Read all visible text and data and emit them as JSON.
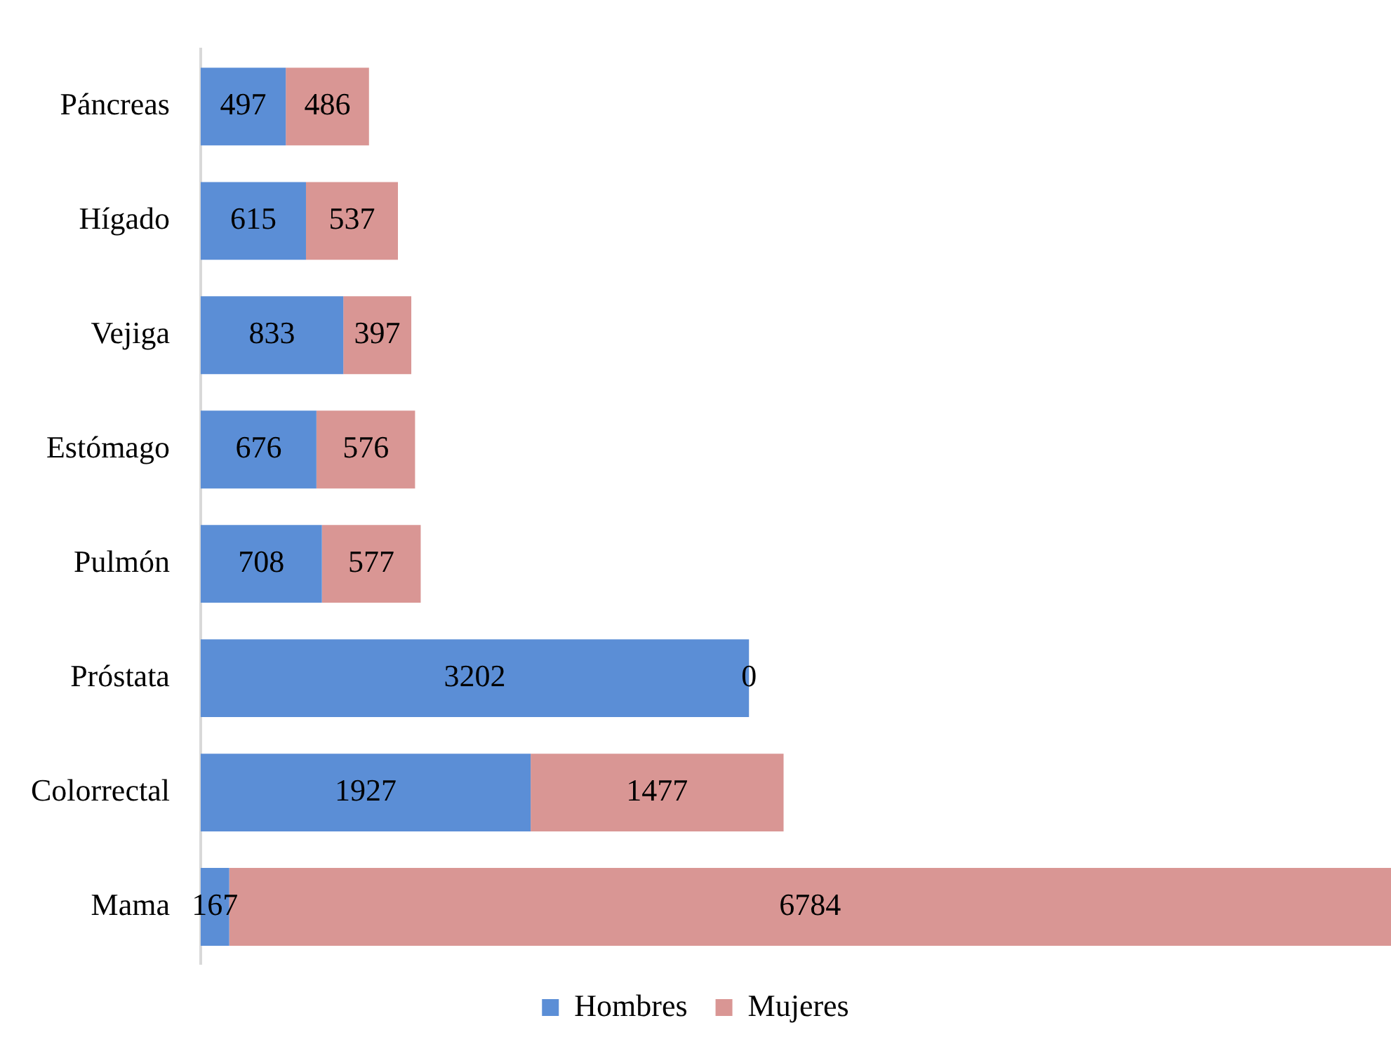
{
  "chart_data": {
    "type": "bar",
    "orientation": "horizontal",
    "stacked": true,
    "data_labels": true,
    "legend": "bottom",
    "categories": [
      "Páncreas",
      "Hígado",
      "Vejiga",
      "Estómago",
      "Pulmón",
      "Próstata",
      "Colorrectal",
      "Mama"
    ],
    "series": [
      {
        "name": "Hombres",
        "color": "#5b8ed6",
        "values": [
          497,
          615,
          833,
          676,
          708,
          3202,
          1927,
          167
        ]
      },
      {
        "name": "Mujeres",
        "color": "#d99694",
        "values": [
          486,
          537,
          397,
          576,
          577,
          0,
          1477,
          6784
        ]
      }
    ]
  }
}
